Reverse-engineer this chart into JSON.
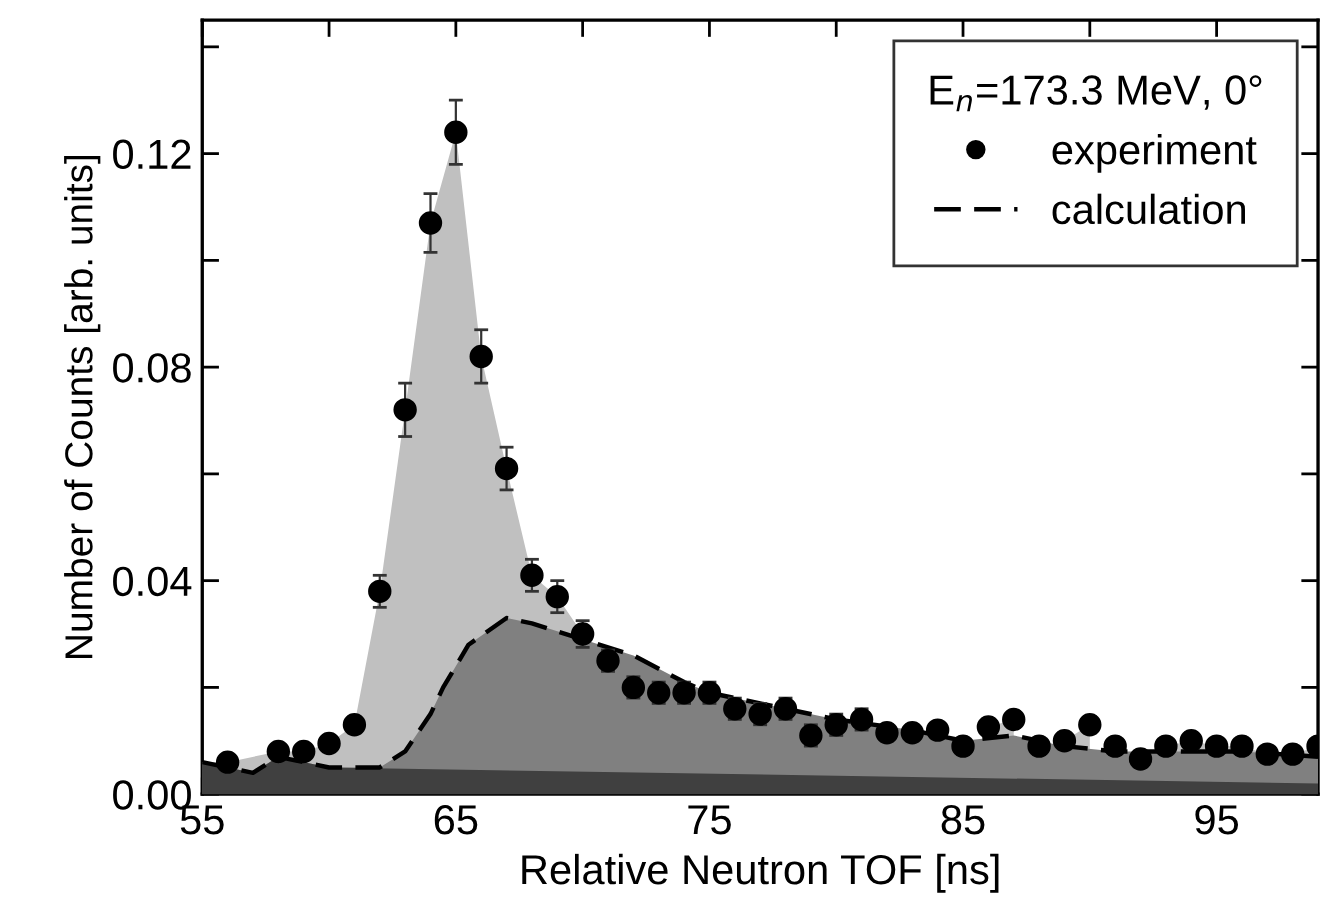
{
  "chart_data": {
    "type": "scatter",
    "xlabel": "Relative Neutron TOF [ns]",
    "ylabel": "Number of Counts [arb. units]",
    "legend_title": "E$_{n}$=173.3 MeV, 0°",
    "legend": "top right",
    "grid": false,
    "xlim": [
      55,
      99
    ],
    "ylim": [
      0,
      0.145
    ],
    "xticks": [
      55,
      {
        "value": 60,
        "label": null
      },
      65,
      {
        "value": 70,
        "label": null
      },
      75,
      {
        "value": 80,
        "label": null
      },
      85,
      {
        "value": 90,
        "label": null
      },
      95
    ],
    "yticks": [
      {
        "value": 0,
        "label": "0.00"
      },
      {
        "value": 0.02,
        "label": null
      },
      {
        "value": 0.04,
        "label": "0.04"
      },
      {
        "value": 0.06,
        "label": null
      },
      {
        "value": 0.08,
        "label": "0.08"
      },
      {
        "value": 0.1,
        "label": null
      },
      {
        "value": 0.12,
        "label": "0.12"
      },
      {
        "value": 0.14,
        "label": null
      }
    ],
    "series": [
      {
        "name": "experiment",
        "color": "#000000",
        "marker": "circle",
        "x": [
          56,
          58,
          59,
          60,
          61,
          62,
          63,
          64,
          65,
          66,
          67,
          68,
          69,
          70,
          71,
          72,
          73,
          74,
          75,
          76,
          77,
          78,
          79,
          80,
          81,
          82,
          83,
          84,
          85,
          86,
          87,
          88,
          89,
          90,
          91,
          92,
          93,
          94,
          95,
          96,
          97,
          98,
          99
        ],
        "values": [
          0.006,
          0.008,
          0.008,
          0.0095,
          0.013,
          0.038,
          0.072,
          0.107,
          0.124,
          0.082,
          0.061,
          0.041,
          0.037,
          0.03,
          0.025,
          0.02,
          0.019,
          0.019,
          0.019,
          0.016,
          0.015,
          0.016,
          0.011,
          0.013,
          0.014,
          0.0115,
          0.0115,
          0.012,
          0.009,
          0.0126,
          0.014,
          0.009,
          0.01,
          0.013,
          0.009,
          0.0066,
          0.009,
          0.01,
          0.009,
          0.009,
          0.0075,
          0.0075,
          0.009
        ],
        "errors": [
          0.001,
          0.001,
          0.001,
          0.0015,
          0.0015,
          0.003,
          0.005,
          0.0055,
          0.006,
          0.005,
          0.004,
          0.003,
          0.003,
          0.0025,
          0.002,
          0.002,
          0.002,
          0.002,
          0.002,
          0.002,
          0.002,
          0.002,
          0.002,
          0.002,
          0.002,
          0.0015,
          0.0015,
          0.0015,
          0.0015,
          0.0015,
          0.0015,
          0.0015,
          0.0015,
          0.0015,
          0.0015,
          0.0015,
          0.0015,
          0.0015,
          0.0015,
          0.0015,
          0.0015,
          0.0015,
          0.0015
        ]
      },
      {
        "type": "area",
        "color": "#c0c0c0",
        "x": [
          55,
          56,
          58,
          59,
          60,
          61,
          62,
          63,
          64,
          65,
          66,
          67,
          68,
          69,
          70,
          71,
          72,
          73,
          74,
          75,
          76,
          77,
          78,
          79,
          80,
          81,
          82,
          83,
          84,
          85,
          86,
          87,
          88,
          89,
          90,
          91,
          92,
          93,
          94,
          95,
          96,
          97,
          98,
          99
        ],
        "values": [
          0.006,
          0.006,
          0.008,
          0.008,
          0.0095,
          0.013,
          0.038,
          0.072,
          0.107,
          0.124,
          0.082,
          0.061,
          0.041,
          0.037,
          0.03,
          null,
          null,
          null,
          null,
          null,
          null,
          null,
          null,
          null,
          null,
          null,
          null,
          0.0115,
          0.012,
          null,
          0.0126,
          0.014,
          null,
          0.01,
          0.013,
          null,
          null,
          0.009,
          0.01,
          0.009,
          0.009,
          0.0075,
          0.0075,
          0.009
        ]
      },
      {
        "type": "area",
        "name": "calculation",
        "color": "#808080",
        "line_style": "dashed",
        "x": [
          55,
          57,
          58,
          60,
          61,
          62,
          63,
          64,
          64.5,
          65.5,
          67,
          68,
          70,
          72,
          74,
          75,
          77,
          80,
          83,
          85,
          87,
          89,
          91,
          93,
          96,
          99
        ],
        "values": [
          0.006,
          0.004,
          0.007,
          0.005,
          0.005,
          0.005,
          0.008,
          0.015,
          0.02,
          0.028,
          0.033,
          0.032,
          0.029,
          0.026,
          0.021,
          0.019,
          0.017,
          0.014,
          0.012,
          0.01,
          0.011,
          0.009,
          0.008,
          0.008,
          0.008,
          0.007
        ]
      },
      {
        "type": "area",
        "color": "#404040",
        "x": [
          55,
          57,
          58,
          60,
          99
        ],
        "values": [
          0.006,
          0.004,
          0.007,
          0.005,
          0.002
        ]
      }
    ]
  }
}
